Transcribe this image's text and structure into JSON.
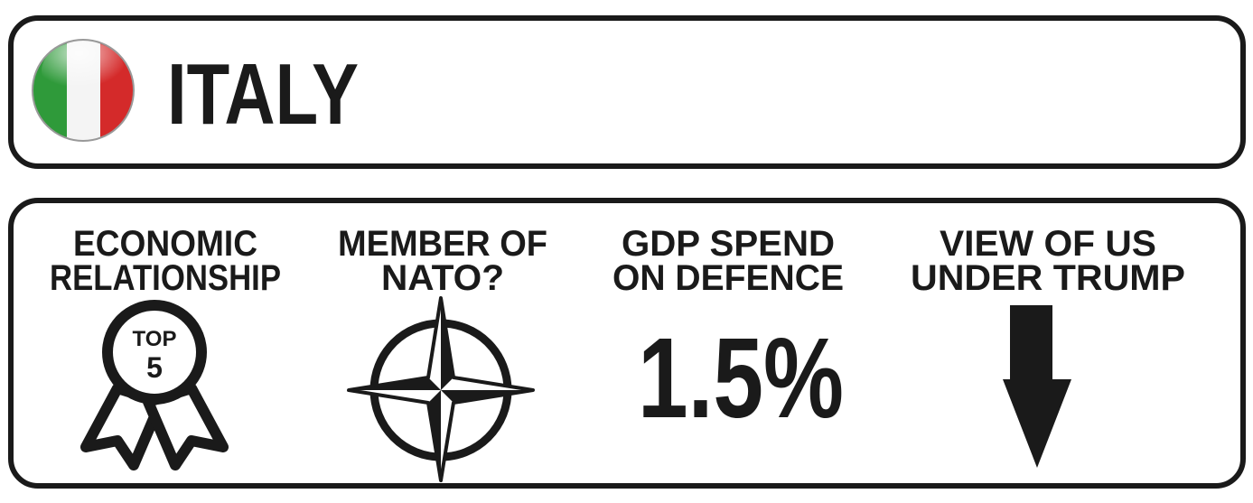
{
  "header": {
    "title": "ITALY"
  },
  "panels": [
    {
      "heading": [
        "ECONOMIC",
        "RELATIONSHIP"
      ],
      "badge": [
        "TOP",
        "5"
      ]
    },
    {
      "heading": [
        "MEMBER OF",
        "NATO?"
      ]
    },
    {
      "heading": [
        "GDP SPEND",
        "ON DEFENCE"
      ],
      "value": "1.5%"
    },
    {
      "heading": [
        "VIEW OF US",
        "UNDER TRUMP"
      ]
    }
  ]
}
